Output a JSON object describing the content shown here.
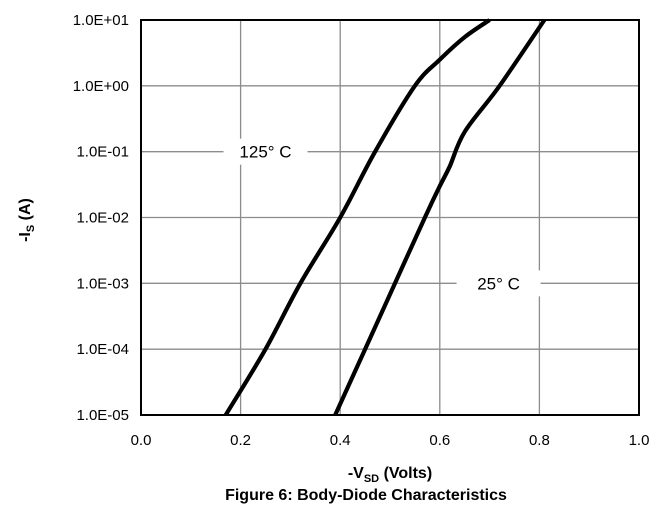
{
  "chart_data": {
    "type": "line",
    "title": "Figure 6: Body-Diode Characteristics",
    "xlabel": {
      "prefix": "-V",
      "sub": "SD",
      "suffix": " (Volts)"
    },
    "ylabel": {
      "prefix": "-I",
      "sub": "S",
      "suffix": " (A)"
    },
    "x_scale": "linear",
    "y_scale": "log",
    "xlim": [
      0.0,
      1.0
    ],
    "ylim": [
      1e-05,
      10
    ],
    "grid": true,
    "x_ticks": [
      0.0,
      0.2,
      0.4,
      0.6,
      0.8,
      1.0
    ],
    "x_tick_labels": [
      "0.0",
      "0.2",
      "0.4",
      "0.6",
      "0.8",
      "1.0"
    ],
    "y_ticks": [
      10,
      1,
      0.1,
      0.01,
      0.001,
      0.0001,
      1e-05
    ],
    "y_tick_labels": [
      "1.0E+01",
      "1.0E+00",
      "1.0E-01",
      "1.0E-02",
      "1.0E-03",
      "1.0E-04",
      "1.0E-05"
    ],
    "series": [
      {
        "name": "125° C",
        "x": [
          0.17,
          0.25,
          0.32,
          0.4,
          0.47,
          0.55,
          0.6,
          0.65,
          0.7
        ],
        "y": [
          1e-05,
          0.0001,
          0.001,
          0.01,
          0.1,
          1.0,
          2.5,
          5.5,
          10
        ]
      },
      {
        "name": "25° C",
        "x": [
          0.39,
          0.45,
          0.51,
          0.57,
          0.6,
          0.62,
          0.65,
          0.72,
          0.81
        ],
        "y": [
          1e-05,
          0.0001,
          0.001,
          0.01,
          0.03,
          0.06,
          0.2,
          1.0,
          10
        ]
      }
    ],
    "annotations": [
      {
        "text": "125° C",
        "series": 0
      },
      {
        "text": "25° C",
        "series": 1
      }
    ]
  }
}
